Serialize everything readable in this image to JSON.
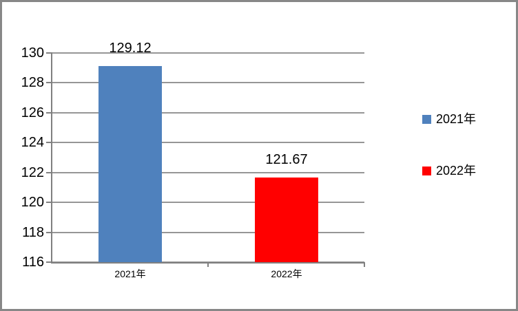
{
  "chart_data": {
    "type": "bar",
    "title": "",
    "categories": [
      "2021年",
      "2022年"
    ],
    "series": [
      {
        "name": "2021年",
        "color": "#4F81BD",
        "value": 129.12,
        "data_label": "129.12"
      },
      {
        "name": "2022年",
        "color": "#FF0000",
        "value": 121.67,
        "data_label": "121.67"
      }
    ],
    "ylim": [
      116,
      130
    ],
    "yticks": [
      130,
      128,
      126,
      124,
      122,
      120,
      118,
      116
    ],
    "ytick_labels": [
      "130",
      "128",
      "126",
      "124",
      "122",
      "120",
      "118",
      "116"
    ],
    "grid": true,
    "legend_position": "right",
    "legend": [
      {
        "label": "2021年",
        "color": "#4F81BD"
      },
      {
        "label": "2022年",
        "color": "#FF0000"
      }
    ]
  },
  "colors": {
    "gridline": "#969696",
    "axis": "#808080",
    "frame_border": "#878787",
    "background": "#FFFFFF",
    "text": "#000000"
  }
}
